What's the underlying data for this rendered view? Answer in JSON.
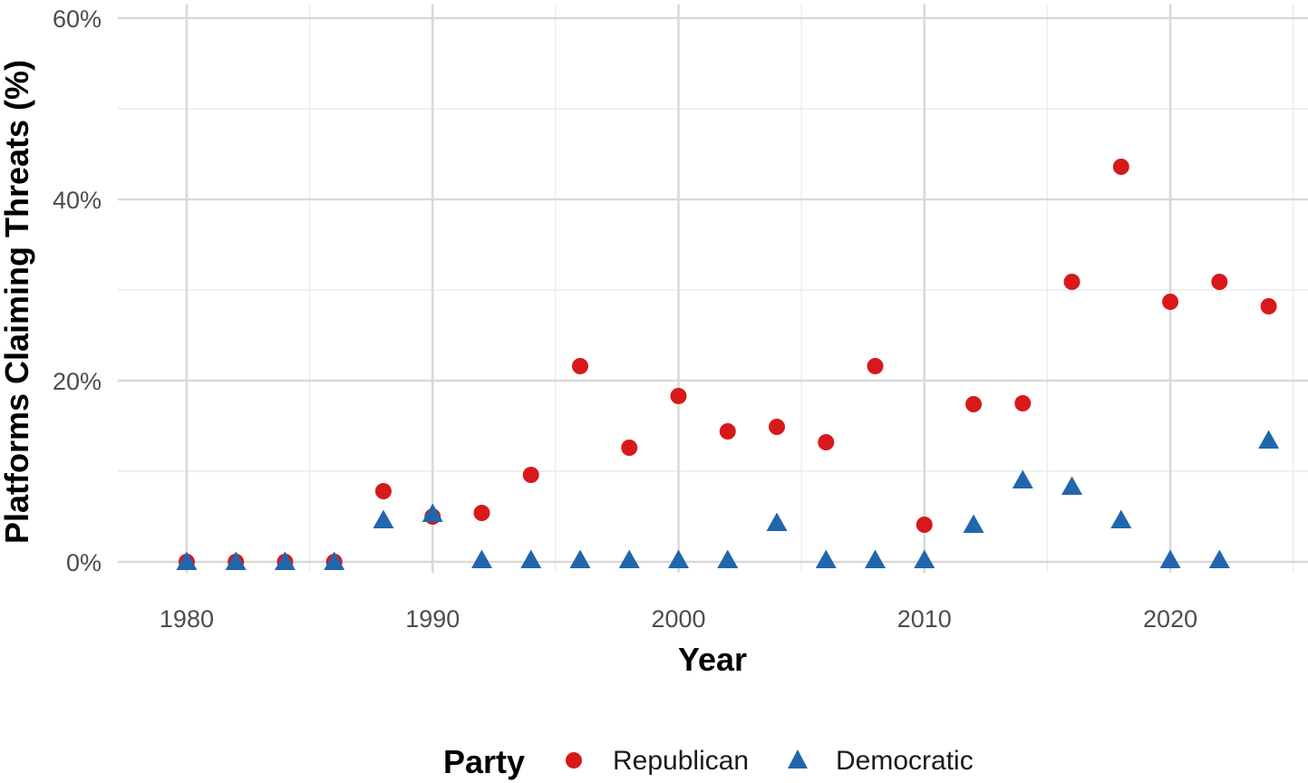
{
  "chart_data": {
    "type": "scatter",
    "title": "",
    "xlabel": "Year",
    "ylabel": "Platforms Claiming Threats (%)",
    "xlim": [
      1977.2,
      2025.6
    ],
    "ylim": [
      -1.2,
      61.5
    ],
    "x_ticks": [
      1980,
      1990,
      2000,
      2010,
      2020
    ],
    "x_tick_labels": [
      "1980",
      "1990",
      "2000",
      "2010",
      "2020"
    ],
    "y_ticks": [
      0,
      20,
      40,
      60
    ],
    "y_tick_labels": [
      "0%",
      "20%",
      "40%",
      "60%"
    ],
    "grid": true,
    "legend": {
      "title": "Party",
      "position": "bottom"
    },
    "series": [
      {
        "name": "Republican",
        "marker": "circle",
        "color": "#d7191c",
        "points": [
          [
            1980,
            0.0
          ],
          [
            1982,
            0.0
          ],
          [
            1984,
            0.0
          ],
          [
            1986,
            0.0
          ],
          [
            1988,
            7.8
          ],
          [
            1990,
            5.0
          ],
          [
            1992,
            5.4
          ],
          [
            1994,
            9.6
          ],
          [
            1996,
            21.6
          ],
          [
            1998,
            12.6
          ],
          [
            2000,
            18.3
          ],
          [
            2002,
            14.4
          ],
          [
            2004,
            14.9
          ],
          [
            2006,
            13.2
          ],
          [
            2008,
            21.6
          ],
          [
            2010,
            4.1
          ],
          [
            2012,
            17.4
          ],
          [
            2014,
            17.5
          ],
          [
            2016,
            30.9
          ],
          [
            2018,
            43.6
          ],
          [
            2020,
            28.7
          ],
          [
            2022,
            30.9
          ],
          [
            2024,
            28.2
          ]
        ]
      },
      {
        "name": "Democratic",
        "marker": "triangle",
        "color": "#2166ac",
        "points": [
          [
            1980,
            0.0
          ],
          [
            1982,
            0.0
          ],
          [
            1984,
            0.0
          ],
          [
            1986,
            0.0
          ],
          [
            1988,
            4.6
          ],
          [
            1990,
            5.3
          ],
          [
            1992,
            0.2
          ],
          [
            1994,
            0.2
          ],
          [
            1996,
            0.2
          ],
          [
            1998,
            0.2
          ],
          [
            2000,
            0.2
          ],
          [
            2002,
            0.2
          ],
          [
            2004,
            4.3
          ],
          [
            2006,
            0.2
          ],
          [
            2008,
            0.2
          ],
          [
            2010,
            0.2
          ],
          [
            2012,
            4.1
          ],
          [
            2014,
            9.0
          ],
          [
            2016,
            8.3
          ],
          [
            2018,
            4.6
          ],
          [
            2020,
            0.2
          ],
          [
            2022,
            0.2
          ],
          [
            2024,
            13.4
          ]
        ]
      }
    ]
  }
}
